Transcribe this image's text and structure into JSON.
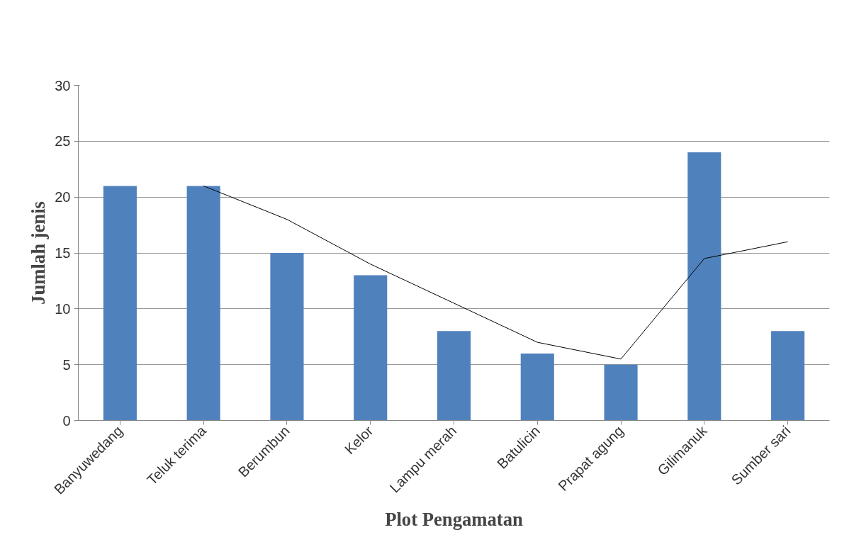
{
  "chart_data": {
    "type": "bar",
    "xlabel": "Plot Pengamatan",
    "ylabel": "Jumlah jenis",
    "categories": [
      "Banyuwedang",
      "Teluk terima",
      "Berumbun",
      "Kelor",
      "Lampu merah",
      "Batulicin",
      "Prapat agung",
      "Gilimanuk",
      "Sumber sari"
    ],
    "series": [
      {
        "color": "#4f81bd",
        "values": [
          21,
          21,
          15,
          13,
          8,
          6,
          5,
          24,
          8
        ]
      },
      {
        "type": "line",
        "color": "#000000",
        "values": [
          null,
          21,
          18,
          14,
          10.5,
          7,
          5.5,
          14.5,
          16
        ]
      }
    ],
    "ylim": [
      0,
      30
    ],
    "yticks": [
      0,
      5,
      10,
      15,
      20,
      25,
      30
    ],
    "grid": "y"
  }
}
